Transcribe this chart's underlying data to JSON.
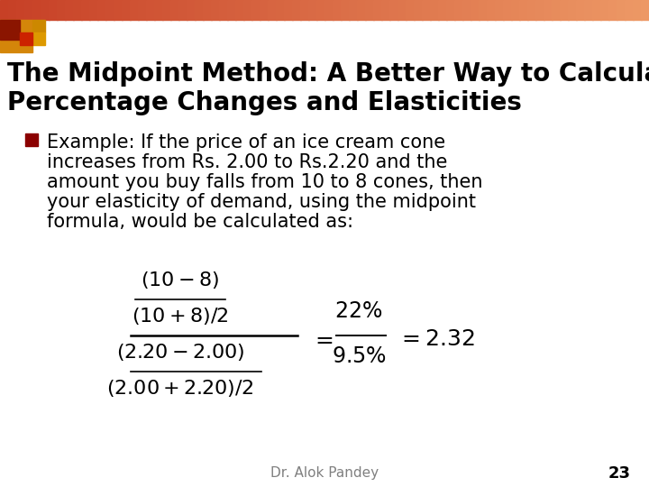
{
  "title_line1": "The Midpoint Method: A Better Way to Calculate",
  "title_line2": "Percentage Changes and Elasticities",
  "title_fontsize": 20,
  "title_color": "#000000",
  "bg_color": "#ffffff",
  "bullet_color": "#8B0000",
  "bullet_text_line1": "Example: If the price of an ice cream cone",
  "bullet_text_line2": "increases from Rs. 2.00 to Rs.2.20 and the",
  "bullet_text_line3": "amount you buy falls from 10 to 8 cones, then",
  "bullet_text_line4": "your elasticity of demand, using the midpoint",
  "bullet_text_line5": "formula, would be calculated as:",
  "body_fontsize": 15,
  "formula_fontsize": 15,
  "footer_text": "Dr. Alok Pandey",
  "footer_page": "23",
  "footer_fontsize": 11
}
